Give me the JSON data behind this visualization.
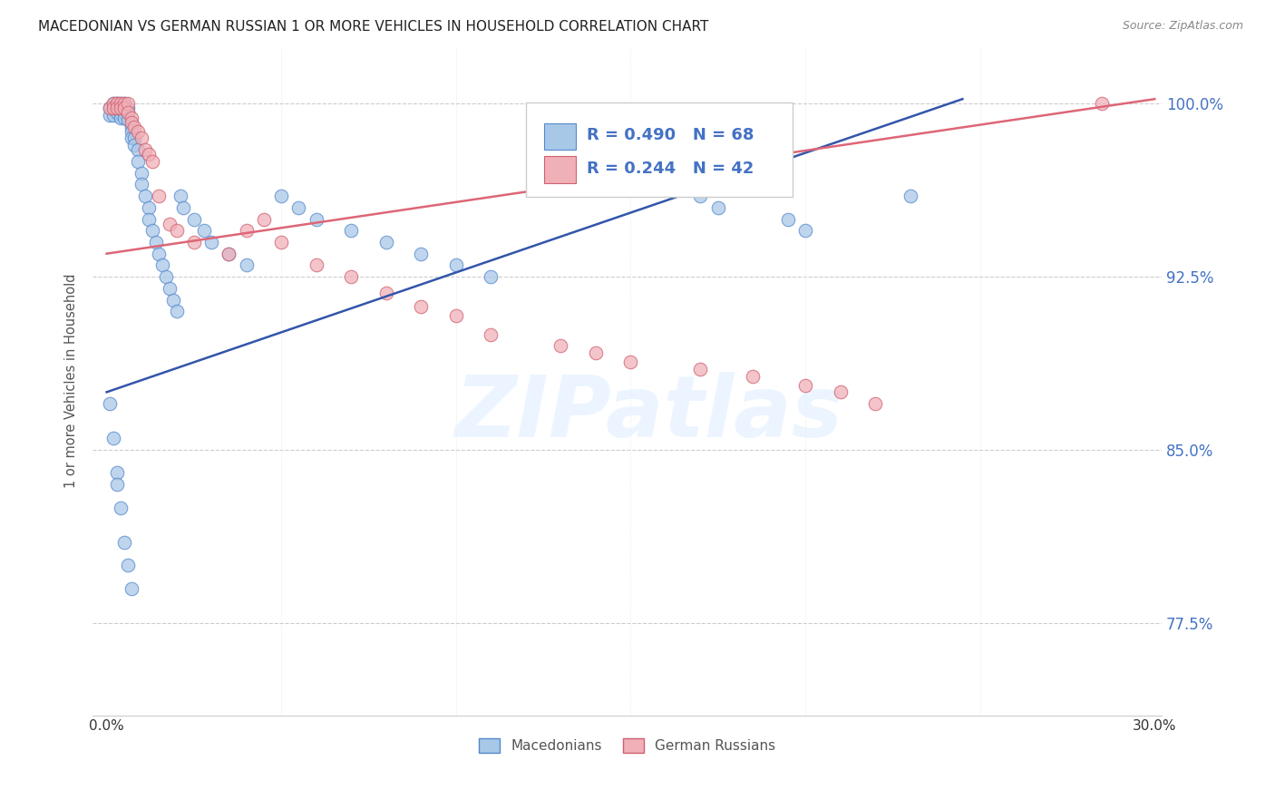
{
  "title": "MACEDONIAN VS GERMAN RUSSIAN 1 OR MORE VEHICLES IN HOUSEHOLD CORRELATION CHART",
  "source": "Source: ZipAtlas.com",
  "ylabel": "1 or more Vehicles in Household",
  "ytick_labels": [
    "100.0%",
    "92.5%",
    "85.0%",
    "77.5%"
  ],
  "ytick_values": [
    1.0,
    0.925,
    0.85,
    0.775
  ],
  "xlim": [
    0.0,
    0.3
  ],
  "ylim": [
    0.735,
    1.025
  ],
  "legend_r1": "R = 0.490",
  "legend_n1": "N = 68",
  "legend_r2": "R = 0.244",
  "legend_n2": "N = 42",
  "legend_label1": "Macedonians",
  "legend_label2": "German Russians",
  "color_blue_fill": "#a8c8e8",
  "color_blue_edge": "#5588cc",
  "color_pink_fill": "#f0b0b8",
  "color_pink_edge": "#d06070",
  "color_blue_line": "#3355aa",
  "color_pink_line": "#dd6677",
  "color_text_blue": "#4472c4",
  "color_text_pink": "#e06c7a",
  "watermark_text": "ZIPatlas",
  "blue_x": [
    0.001,
    0.001,
    0.002,
    0.002,
    0.002,
    0.003,
    0.003,
    0.003,
    0.003,
    0.004,
    0.004,
    0.004,
    0.004,
    0.005,
    0.005,
    0.005,
    0.005,
    0.006,
    0.006,
    0.006,
    0.007,
    0.007,
    0.007,
    0.008,
    0.008,
    0.009,
    0.009,
    0.01,
    0.01,
    0.011,
    0.012,
    0.012,
    0.013,
    0.014,
    0.015,
    0.016,
    0.017,
    0.018,
    0.019,
    0.02,
    0.021,
    0.022,
    0.025,
    0.028,
    0.03,
    0.035,
    0.04,
    0.05,
    0.055,
    0.06,
    0.07,
    0.08,
    0.09,
    0.1,
    0.11,
    0.17,
    0.175,
    0.195,
    0.2,
    0.23,
    0.001,
    0.002,
    0.003,
    0.003,
    0.004,
    0.005,
    0.006,
    0.007
  ],
  "blue_y": [
    0.998,
    0.995,
    1.0,
    0.998,
    0.995,
    1.0,
    1.0,
    0.998,
    0.996,
    1.0,
    0.998,
    0.996,
    0.994,
    1.0,
    0.998,
    0.996,
    0.994,
    0.998,
    0.996,
    0.993,
    0.99,
    0.988,
    0.985,
    0.985,
    0.982,
    0.98,
    0.975,
    0.97,
    0.965,
    0.96,
    0.955,
    0.95,
    0.945,
    0.94,
    0.935,
    0.93,
    0.925,
    0.92,
    0.915,
    0.91,
    0.96,
    0.955,
    0.95,
    0.945,
    0.94,
    0.935,
    0.93,
    0.96,
    0.955,
    0.95,
    0.945,
    0.94,
    0.935,
    0.93,
    0.925,
    0.96,
    0.955,
    0.95,
    0.945,
    0.96,
    0.87,
    0.855,
    0.84,
    0.835,
    0.825,
    0.81,
    0.8,
    0.79
  ],
  "pink_x": [
    0.001,
    0.002,
    0.002,
    0.003,
    0.003,
    0.004,
    0.004,
    0.005,
    0.005,
    0.006,
    0.006,
    0.007,
    0.007,
    0.008,
    0.009,
    0.01,
    0.011,
    0.012,
    0.013,
    0.015,
    0.018,
    0.02,
    0.025,
    0.035,
    0.04,
    0.045,
    0.05,
    0.06,
    0.07,
    0.08,
    0.09,
    0.1,
    0.11,
    0.13,
    0.14,
    0.15,
    0.17,
    0.185,
    0.2,
    0.21,
    0.22,
    0.285
  ],
  "pink_y": [
    0.998,
    1.0,
    0.998,
    1.0,
    0.998,
    1.0,
    0.998,
    1.0,
    0.998,
    1.0,
    0.996,
    0.994,
    0.992,
    0.99,
    0.988,
    0.985,
    0.98,
    0.978,
    0.975,
    0.96,
    0.948,
    0.945,
    0.94,
    0.935,
    0.945,
    0.95,
    0.94,
    0.93,
    0.925,
    0.918,
    0.912,
    0.908,
    0.9,
    0.895,
    0.892,
    0.888,
    0.885,
    0.882,
    0.878,
    0.875,
    0.87,
    1.0
  ],
  "blue_line_x0": 0.0,
  "blue_line_y0": 0.875,
  "blue_line_x1": 0.245,
  "blue_line_y1": 1.002,
  "pink_line_x0": 0.0,
  "pink_line_y0": 0.935,
  "pink_line_x1": 0.3,
  "pink_line_y1": 1.002
}
